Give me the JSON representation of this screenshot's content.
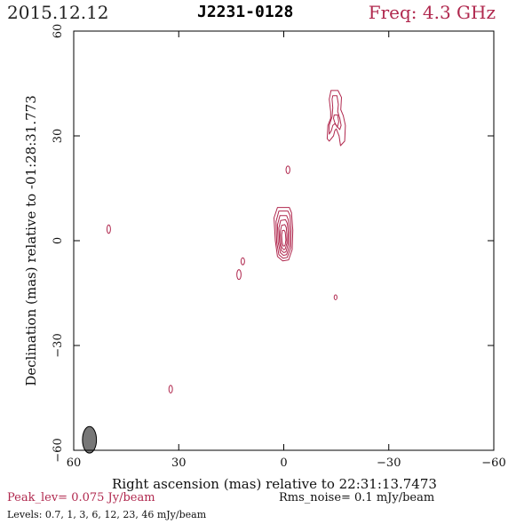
{
  "header": {
    "date": "2015.12.12",
    "source": "J2231-0128",
    "freq": "Freq: 4.3 GHz"
  },
  "footer": {
    "peak": "Peak_lev=  0.075 Jy/beam",
    "rms": "Rms_noise=  0.1 mJy/beam",
    "levels": "Levels: 0.7,   1,   3,   6,  12,  23,  46 mJy/beam"
  },
  "colors": {
    "contour": "#b0284e",
    "frame": "#000000",
    "beam": "#777777"
  },
  "chart_data": {
    "type": "contour",
    "xlabel": "Right ascension (mas) relative to 22:31:13.7473",
    "ylabel": "Declination (mas) relative to -01:28:31.773",
    "xlim": [
      60,
      -60
    ],
    "ylim": [
      -60,
      60
    ],
    "xticks": [
      60,
      30,
      0,
      -30,
      -60
    ],
    "yticks": [
      -60,
      -30,
      0,
      30,
      60
    ],
    "xtick_labels": [
      "60",
      "30",
      "0",
      "−30",
      "−60"
    ],
    "ytick_labels": [
      "−60",
      "−30",
      "0",
      "30",
      "60"
    ],
    "levels_mJy": [
      0.7,
      1,
      3,
      6,
      12,
      23,
      46
    ],
    "peak_Jy_per_beam": 0.075,
    "rms_mJy_per_beam": 0.1,
    "beam": {
      "x": 55.5,
      "y": -57,
      "major": 3.8,
      "minor": 2.0,
      "pa": 0
    },
    "core": {
      "x": 0.3,
      "y": 2,
      "contours": [
        {
          "points": [
            [
              -1.6,
              9.5
            ],
            [
              1.8,
              9.5
            ],
            [
              2.8,
              6.5
            ],
            [
              2.4,
              0
            ],
            [
              1.8,
              -4.5
            ],
            [
              0.3,
              -5.8
            ],
            [
              -1.4,
              -5.5
            ],
            [
              -2.4,
              -2.5
            ],
            [
              -2.6,
              3
            ],
            [
              -2.2,
              8
            ]
          ]
        },
        {
          "points": [
            [
              -1.2,
              8.5
            ],
            [
              1.4,
              8.5
            ],
            [
              2.2,
              5.5
            ],
            [
              2,
              -0.5
            ],
            [
              1.4,
              -4
            ],
            [
              0.2,
              -5
            ],
            [
              -1,
              -4.8
            ],
            [
              -2,
              -2
            ],
            [
              -2.1,
              3
            ],
            [
              -1.8,
              7.2
            ]
          ]
        },
        {
          "points": [
            [
              -0.8,
              7.2
            ],
            [
              1.1,
              7.2
            ],
            [
              1.8,
              4.5
            ],
            [
              1.6,
              -0.5
            ],
            [
              1,
              -3.4
            ],
            [
              0.1,
              -4.2
            ],
            [
              -0.8,
              -4
            ],
            [
              -1.6,
              -1.6
            ],
            [
              -1.7,
              2.8
            ],
            [
              -1.3,
              6
            ]
          ]
        },
        {
          "points": [
            [
              -0.5,
              6
            ],
            [
              0.9,
              5.8
            ],
            [
              1.4,
              3.6
            ],
            [
              1.2,
              -0.5
            ],
            [
              0.7,
              -2.8
            ],
            [
              0,
              -3.4
            ],
            [
              -0.6,
              -3.2
            ],
            [
              -1.2,
              -1.2
            ],
            [
              -1.3,
              2.4
            ],
            [
              -1,
              5
            ]
          ]
        },
        {
          "points": [
            [
              -0.3,
              4.6
            ],
            [
              0.6,
              4.4
            ],
            [
              1,
              2.6
            ],
            [
              0.9,
              -0.3
            ],
            [
              0.5,
              -2
            ],
            [
              0,
              -2.6
            ],
            [
              -0.4,
              -2.4
            ],
            [
              -0.9,
              -0.8
            ],
            [
              -0.9,
              1.8
            ],
            [
              -0.7,
              3.8
            ]
          ]
        },
        {
          "points": [
            [
              -0.1,
              3
            ],
            [
              0.4,
              2.9
            ],
            [
              0.6,
              1.6
            ],
            [
              0.5,
              -0.2
            ],
            [
              0.2,
              -1.4
            ],
            [
              -0.1,
              -1.6
            ],
            [
              -0.4,
              -1.2
            ],
            [
              -0.6,
              0.2
            ],
            [
              -0.5,
              1.6
            ],
            [
              -0.4,
              2.5
            ]
          ]
        }
      ]
    },
    "jet": {
      "contours": [
        {
          "points": [
            [
              -13.5,
              43
            ],
            [
              -15.5,
              43
            ],
            [
              -16.5,
              41
            ],
            [
              -16.3,
              37.5
            ],
            [
              -17,
              35.8
            ],
            [
              -17.6,
              33
            ],
            [
              -17.4,
              28.5
            ],
            [
              -16.2,
              27.2
            ],
            [
              -15.8,
              30
            ],
            [
              -15,
              32
            ],
            [
              -14.6,
              31.5
            ],
            [
              -14.2,
              30
            ],
            [
              -13,
              28.5
            ],
            [
              -12.4,
              29.2
            ],
            [
              -12.6,
              33
            ],
            [
              -13.4,
              35
            ],
            [
              -13.4,
              37
            ],
            [
              -13,
              40.5
            ]
          ]
        },
        {
          "points": [
            [
              -14,
              41.5
            ],
            [
              -15.2,
              41.5
            ],
            [
              -15.6,
              39
            ],
            [
              -15.4,
              37
            ],
            [
              -16,
              35
            ],
            [
              -16.4,
              33
            ],
            [
              -16,
              31.8
            ],
            [
              -15.4,
              32.5
            ],
            [
              -14.6,
              33.5
            ],
            [
              -14,
              33
            ],
            [
              -13.6,
              31.5
            ],
            [
              -13,
              30.5
            ],
            [
              -13,
              33
            ],
            [
              -13.8,
              35.5
            ],
            [
              -14,
              38
            ],
            [
              -13.8,
              40.5
            ]
          ]
        },
        {
          "points": [
            [
              -14.4,
              36
            ],
            [
              -15.4,
              36
            ],
            [
              -15.7,
              34
            ],
            [
              -15.3,
              32.5
            ],
            [
              -14.6,
              33.8
            ],
            [
              -14.2,
              35
            ]
          ]
        }
      ]
    },
    "islands": [
      {
        "x": -1.2,
        "y": 20.3,
        "rx": 0.55,
        "ry": 1.1
      },
      {
        "x": 50,
        "y": 3.3,
        "rx": 0.5,
        "ry": 1.2
      },
      {
        "x": 11.7,
        "y": -5.9,
        "rx": 0.5,
        "ry": 1.0
      },
      {
        "x": 12.8,
        "y": -9.7,
        "rx": 0.6,
        "ry": 1.4
      },
      {
        "x": -14.8,
        "y": -16.2,
        "rx": 0.4,
        "ry": 0.7
      },
      {
        "x": 32.3,
        "y": -42.5,
        "rx": 0.5,
        "ry": 1.1
      }
    ]
  }
}
